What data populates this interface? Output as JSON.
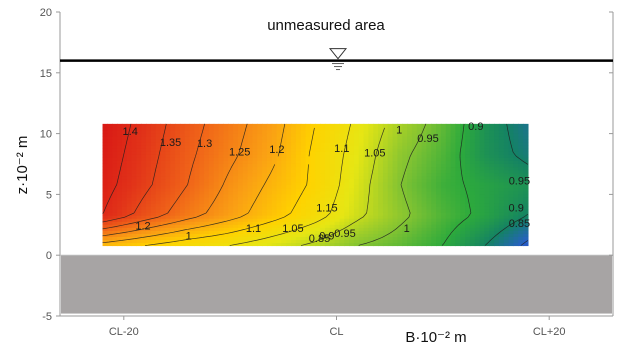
{
  "chart_data": {
    "type": "heatmap",
    "title": "",
    "xlabel": "B·10⁻² m",
    "ylabel": "z·10⁻² m",
    "ylim": [
      -5,
      20
    ],
    "yticks": [
      -5,
      0,
      5,
      10,
      15,
      20
    ],
    "xticks": [
      "CL-20",
      "CL",
      "CL+20"
    ],
    "x_tick_positions": [
      -20,
      0,
      20
    ],
    "xlim": [
      -26,
      26
    ],
    "measured_region": {
      "x": [
        -22,
        2,
        18
      ],
      "z": [
        0.8,
        10.8
      ]
    },
    "x_samples": [
      -22,
      -18,
      -14,
      -10,
      -6,
      -2,
      2,
      6,
      10,
      14,
      18
    ],
    "z_samples": [
      0.8,
      3.3,
      5.8,
      8.3,
      10.8
    ],
    "values": [
      [
        1.18,
        1.15,
        1.12,
        1.1,
        1.07,
        1.04,
        1.0,
        0.98,
        0.95,
        0.9,
        0.84
      ],
      [
        1.4,
        1.33,
        1.27,
        1.22,
        1.17,
        1.12,
        1.06,
        1.01,
        0.97,
        0.94,
        0.9
      ],
      [
        1.42,
        1.36,
        1.3,
        1.24,
        1.19,
        1.14,
        1.07,
        1.0,
        0.96,
        0.94,
        0.92
      ],
      [
        1.43,
        1.37,
        1.31,
        1.26,
        1.21,
        1.14,
        1.08,
        1.01,
        0.97,
        0.92,
        0.89
      ],
      [
        1.44,
        1.38,
        1.32,
        1.27,
        1.22,
        1.15,
        1.09,
        1.03,
        0.98,
        0.92,
        0.88
      ]
    ],
    "contour_labels": [
      {
        "text": "1.4",
        "x": -19.4,
        "z": 9.9
      },
      {
        "text": "1.35",
        "x": -15.6,
        "z": 9.0
      },
      {
        "text": "1.3",
        "x": -12.4,
        "z": 8.9
      },
      {
        "text": "1.25",
        "x": -9.1,
        "z": 8.2
      },
      {
        "text": "1.2",
        "x": -5.6,
        "z": 8.4
      },
      {
        "text": "1.1",
        "x": 0.5,
        "z": 8.5
      },
      {
        "text": "1.05",
        "x": 3.6,
        "z": 8.1
      },
      {
        "text": "1",
        "x": 5.9,
        "z": 10.0
      },
      {
        "text": "0.95",
        "x": 8.6,
        "z": 9.3
      },
      {
        "text": "0.9",
        "x": 13.1,
        "z": 10.3
      },
      {
        "text": "0.95",
        "x": 17.2,
        "z": 5.8
      },
      {
        "text": "0.9",
        "x": 16.9,
        "z": 3.6
      },
      {
        "text": "0.85",
        "x": 17.2,
        "z": 2.3
      },
      {
        "text": "1.15",
        "x": -0.9,
        "z": 3.6
      },
      {
        "text": "1.2",
        "x": -18.2,
        "z": 2.1
      },
      {
        "text": "1.1",
        "x": -7.8,
        "z": 1.9
      },
      {
        "text": "1.05",
        "x": -4.1,
        "z": 1.9
      },
      {
        "text": "1",
        "x": -13.9,
        "z": 1.3
      },
      {
        "text": "1",
        "x": 6.6,
        "z": 1.9
      },
      {
        "text": "0.85",
        "x": -1.6,
        "z": 1.1
      },
      {
        "text": "0.9",
        "x": -0.9,
        "z": 1.3
      },
      {
        "text": "0.95",
        "x": 0.8,
        "z": 1.5
      }
    ],
    "water_level_z": 16,
    "bed_region_z": [
      -4.8,
      0
    ],
    "annotation": "unmeasured area",
    "grid": false
  },
  "colors": {
    "bed": "#a7a4a4",
    "water_line": "#000000",
    "axis": "#999999",
    "contour_line": "#1f1f1f"
  },
  "icons": [
    "water-level-icon"
  ]
}
